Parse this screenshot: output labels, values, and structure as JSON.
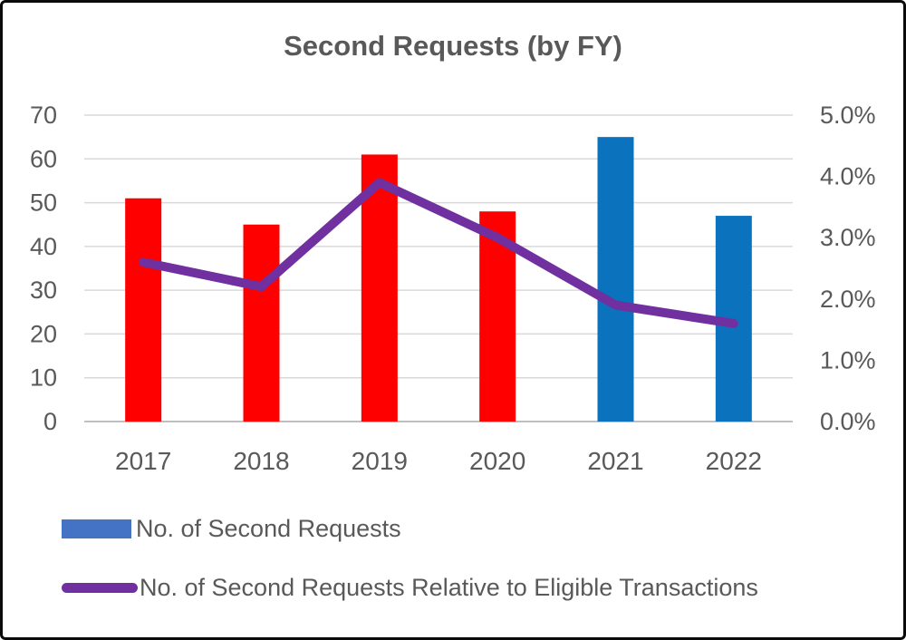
{
  "chart": {
    "title": "Second Requests (by FY)",
    "legend": [
      {
        "label": "No. of Second Requests",
        "swatch_color": "#4472C4",
        "type": "bar"
      },
      {
        "label": "No. of Second Requests Relative to Eligible Transactions",
        "swatch_color": "#7030A0",
        "type": "line"
      }
    ]
  },
  "chart_data": {
    "type": "bar+line",
    "title": "Second Requests (by FY)",
    "categories": [
      "2017",
      "2018",
      "2019",
      "2020",
      "2021",
      "2022"
    ],
    "series": [
      {
        "name": "No. of Second Requests",
        "type": "bar",
        "axis": "left",
        "values": [
          51,
          45,
          61,
          48,
          65,
          47
        ],
        "bar_colors": [
          "#FF0000",
          "#FF0000",
          "#FF0000",
          "#FF0000",
          "#0B72BE",
          "#0B72BE"
        ]
      },
      {
        "name": "No. of Second Requests Relative to Eligible Transactions",
        "type": "line",
        "axis": "right",
        "values": [
          2.6,
          2.2,
          3.9,
          3.0,
          1.9,
          1.6
        ],
        "color": "#7030A0",
        "stroke_width": 10
      }
    ],
    "left_axis": {
      "min": 0,
      "max": 70,
      "tick_labels": [
        "0",
        "10",
        "20",
        "30",
        "40",
        "50",
        "60",
        "70"
      ],
      "tick_values": [
        0,
        10,
        20,
        30,
        40,
        50,
        60,
        70
      ]
    },
    "right_axis": {
      "min": 0,
      "max": 5,
      "tick_labels": [
        "0.0%",
        "1.0%",
        "2.0%",
        "3.0%",
        "4.0%",
        "5.0%"
      ],
      "tick_values": [
        0,
        1,
        2,
        3,
        4,
        5
      ]
    },
    "grid": true,
    "legend_position": "bottom-left",
    "colors": {
      "gridline": "#D9D9D9",
      "baseline": "#BFBFBF",
      "tick_text": "#595959",
      "title_text": "#595959"
    }
  }
}
